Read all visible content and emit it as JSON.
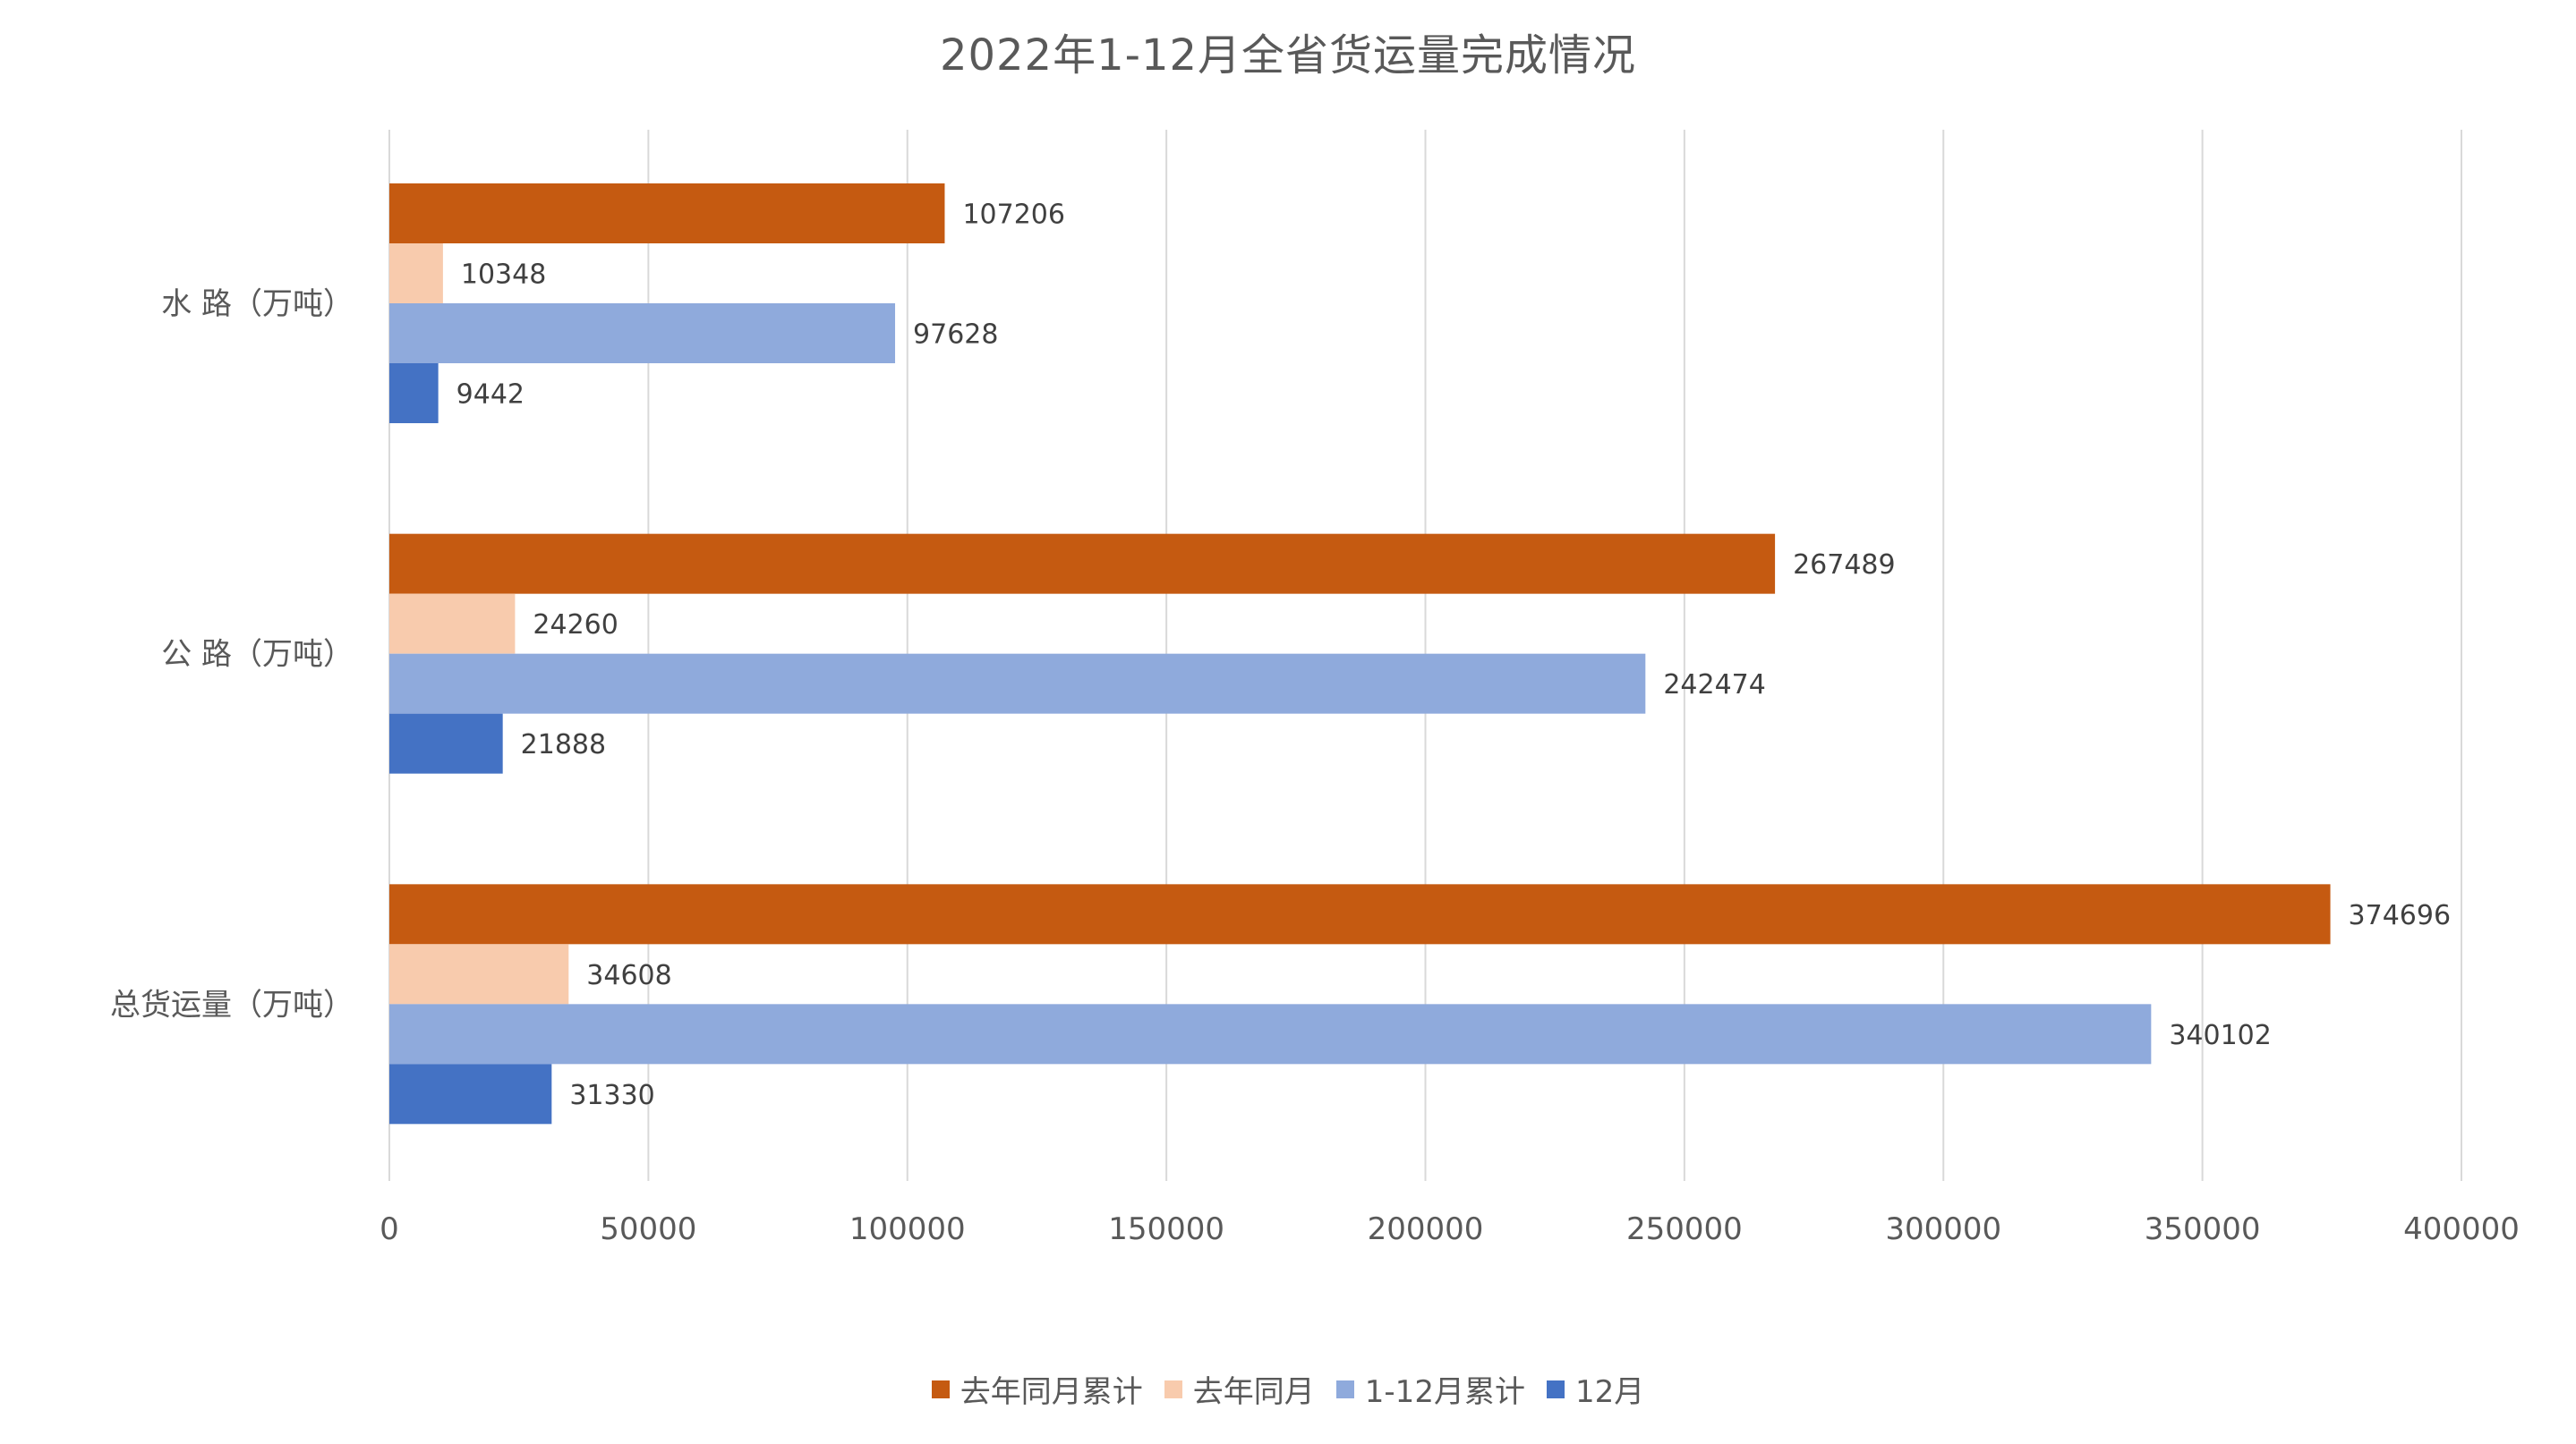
{
  "chart_data": {
    "type": "bar",
    "orientation": "horizontal",
    "title": "2022年1-12月全省货运量完成情况",
    "categories": [
      "水 路（万吨）",
      "公 路（万吨）",
      "总货运量（万吨）"
    ],
    "series": [
      {
        "name": "去年同月累计",
        "color": "#C55A11",
        "values": [
          107206,
          267489,
          374696
        ]
      },
      {
        "name": "去年同月",
        "color": "#F8CBAD",
        "values": [
          10348,
          24260,
          34608
        ]
      },
      {
        "name": "1-12月累计",
        "color": "#8FAADC",
        "values": [
          97628,
          242474,
          340102
        ]
      },
      {
        "name": "12月",
        "color": "#4472C4",
        "values": [
          9442,
          21888,
          31330
        ]
      }
    ],
    "xlim": [
      0,
      400000
    ],
    "xticks": [
      "0",
      "50000",
      "100000",
      "150000",
      "200000",
      "250000",
      "300000",
      "350000",
      "400000"
    ],
    "grid": true,
    "legend_position": "bottom",
    "data_labels": true
  }
}
